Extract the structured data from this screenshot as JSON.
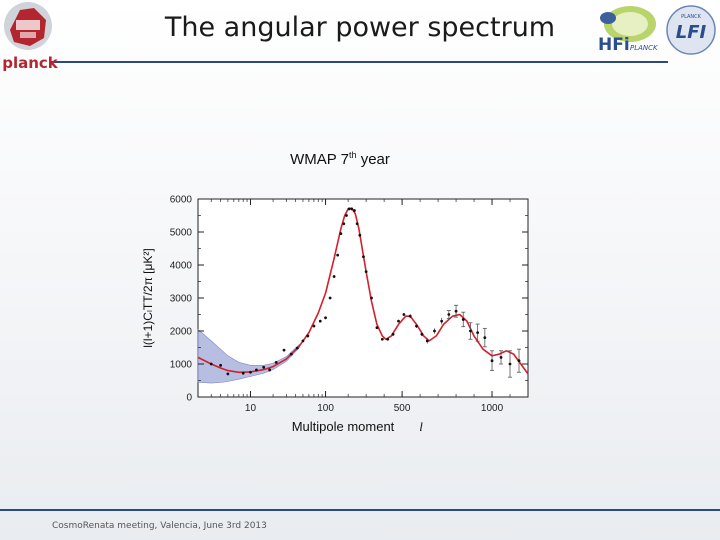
{
  "slide": {
    "title": "The angular power spectrum",
    "footer": "CosmoRenata meeting, Valencia, June 3rd 2013",
    "logos": {
      "left": "planck",
      "right_hfi": "HFi",
      "right_hfi_sub": "PLANCK",
      "right_lfi": "LFI",
      "right_lfi_sub": "PLANCK"
    }
  },
  "chart_heading": {
    "main": "WMAP 7",
    "sup": "th",
    "rest": " year"
  },
  "chart_data": {
    "type": "scatter",
    "xlabel": "Multipole moment",
    "xlabel_symbol": "l",
    "ylabel": "l(l+1)CₗTT/2π [μK²]",
    "xscale": "nonlinear (log-like at low l, linear at high l)",
    "xlim": [
      2,
      1200
    ],
    "ylim": [
      0,
      6000
    ],
    "xticks": [
      {
        "value": 10,
        "label": "10"
      },
      {
        "value": 100,
        "label": "100"
      },
      {
        "value": 500,
        "label": "500"
      },
      {
        "value": 1000,
        "label": "1000"
      }
    ],
    "yticks": [
      {
        "value": 0,
        "label": "0"
      },
      {
        "value": 1000,
        "label": "1000"
      },
      {
        "value": 2000,
        "label": "2000"
      },
      {
        "value": 3000,
        "label": "3000"
      },
      {
        "value": 4000,
        "label": "4000"
      },
      {
        "value": 5000,
        "label": "5000"
      },
      {
        "value": 6000,
        "label": "6000"
      }
    ],
    "grid": false,
    "colors": {
      "model": "#d4202a",
      "points": "#111111",
      "band": "#9ea8d8"
    },
    "model_curve": [
      [
        2,
        1200
      ],
      [
        3,
        1000
      ],
      [
        4,
        880
      ],
      [
        5,
        800
      ],
      [
        7,
        750
      ],
      [
        10,
        760
      ],
      [
        15,
        830
      ],
      [
        20,
        920
      ],
      [
        30,
        1150
      ],
      [
        45,
        1550
      ],
      [
        60,
        1950
      ],
      [
        80,
        2550
      ],
      [
        100,
        3150
      ],
      [
        130,
        4200
      ],
      [
        160,
        5100
      ],
      [
        180,
        5500
      ],
      [
        200,
        5700
      ],
      [
        220,
        5720
      ],
      [
        240,
        5550
      ],
      [
        260,
        5100
      ],
      [
        280,
        4450
      ],
      [
        300,
        3800
      ],
      [
        330,
        2900
      ],
      [
        360,
        2200
      ],
      [
        390,
        1850
      ],
      [
        410,
        1750
      ],
      [
        440,
        1850
      ],
      [
        480,
        2200
      ],
      [
        520,
        2450
      ],
      [
        545,
        2450
      ],
      [
        580,
        2200
      ],
      [
        620,
        1850
      ],
      [
        650,
        1700
      ],
      [
        690,
        1850
      ],
      [
        730,
        2200
      ],
      [
        780,
        2450
      ],
      [
        820,
        2500
      ],
      [
        860,
        2300
      ],
      [
        900,
        1850
      ],
      [
        950,
        1450
      ],
      [
        1000,
        1250
      ],
      [
        1040,
        1300
      ],
      [
        1080,
        1400
      ],
      [
        1120,
        1300
      ],
      [
        1160,
        1000
      ],
      [
        1200,
        700
      ]
    ],
    "uncertainty_band": {
      "upper": [
        [
          2,
          2050
        ],
        [
          3,
          1700
        ],
        [
          4,
          1450
        ],
        [
          5,
          1250
        ],
        [
          7,
          1050
        ],
        [
          10,
          960
        ],
        [
          15,
          960
        ],
        [
          20,
          1020
        ],
        [
          30,
          1220
        ],
        [
          45,
          1600
        ]
      ],
      "lower": [
        [
          2,
          450
        ],
        [
          3,
          420
        ],
        [
          4,
          440
        ],
        [
          5,
          470
        ],
        [
          7,
          540
        ],
        [
          10,
          620
        ],
        [
          15,
          720
        ],
        [
          20,
          830
        ],
        [
          30,
          1080
        ],
        [
          45,
          1500
        ]
      ]
    },
    "points": [
      {
        "l": 3,
        "v": 1000,
        "err": 40
      },
      {
        "l": 4,
        "v": 960,
        "err": 40
      },
      {
        "l": 5,
        "v": 700,
        "err": 40
      },
      {
        "l": 8,
        "v": 720,
        "err": 40
      },
      {
        "l": 10,
        "v": 750,
        "err": 40
      },
      {
        "l": 12,
        "v": 820,
        "err": 40
      },
      {
        "l": 15,
        "v": 900,
        "err": 40
      },
      {
        "l": 18,
        "v": 820,
        "err": 40
      },
      {
        "l": 22,
        "v": 1050,
        "err": 40
      },
      {
        "l": 28,
        "v": 1420,
        "err": 40
      },
      {
        "l": 35,
        "v": 1300,
        "err": 40
      },
      {
        "l": 42,
        "v": 1480,
        "err": 40
      },
      {
        "l": 50,
        "v": 1700,
        "err": 40
      },
      {
        "l": 58,
        "v": 1850,
        "err": 40
      },
      {
        "l": 70,
        "v": 2150,
        "err": 40
      },
      {
        "l": 85,
        "v": 2300,
        "err": 40
      },
      {
        "l": 100,
        "v": 2400,
        "err": 40
      },
      {
        "l": 115,
        "v": 3000,
        "err": 40
      },
      {
        "l": 130,
        "v": 3650,
        "err": 40
      },
      {
        "l": 145,
        "v": 4300,
        "err": 40
      },
      {
        "l": 160,
        "v": 4950,
        "err": 40
      },
      {
        "l": 175,
        "v": 5250,
        "err": 40
      },
      {
        "l": 190,
        "v": 5500,
        "err": 40
      },
      {
        "l": 205,
        "v": 5700,
        "err": 40
      },
      {
        "l": 220,
        "v": 5700,
        "err": 40
      },
      {
        "l": 235,
        "v": 5650,
        "err": 40
      },
      {
        "l": 250,
        "v": 5250,
        "err": 40
      },
      {
        "l": 265,
        "v": 4900,
        "err": 40
      },
      {
        "l": 285,
        "v": 4250,
        "err": 40
      },
      {
        "l": 300,
        "v": 3800,
        "err": 40
      },
      {
        "l": 330,
        "v": 3000,
        "err": 40
      },
      {
        "l": 360,
        "v": 2100,
        "err": 40
      },
      {
        "l": 390,
        "v": 1750,
        "err": 40
      },
      {
        "l": 420,
        "v": 1750,
        "err": 40
      },
      {
        "l": 450,
        "v": 1900,
        "err": 40
      },
      {
        "l": 480,
        "v": 2300,
        "err": 40
      },
      {
        "l": 510,
        "v": 2500,
        "err": 40
      },
      {
        "l": 545,
        "v": 2450,
        "err": 60
      },
      {
        "l": 580,
        "v": 2150,
        "err": 60
      },
      {
        "l": 610,
        "v": 1900,
        "err": 60
      },
      {
        "l": 640,
        "v": 1700,
        "err": 80
      },
      {
        "l": 680,
        "v": 2000,
        "err": 80
      },
      {
        "l": 720,
        "v": 2300,
        "err": 100
      },
      {
        "l": 760,
        "v": 2500,
        "err": 120
      },
      {
        "l": 800,
        "v": 2600,
        "err": 180
      },
      {
        "l": 840,
        "v": 2350,
        "err": 220
      },
      {
        "l": 880,
        "v": 2000,
        "err": 250
      },
      {
        "l": 920,
        "v": 1950,
        "err": 260
      },
      {
        "l": 960,
        "v": 1800,
        "err": 280
      },
      {
        "l": 1000,
        "v": 1100,
        "err": 300
      },
      {
        "l": 1050,
        "v": 1200,
        "err": 200
      },
      {
        "l": 1100,
        "v": 1000,
        "err": 400
      },
      {
        "l": 1150,
        "v": 1100,
        "err": 350
      }
    ]
  }
}
